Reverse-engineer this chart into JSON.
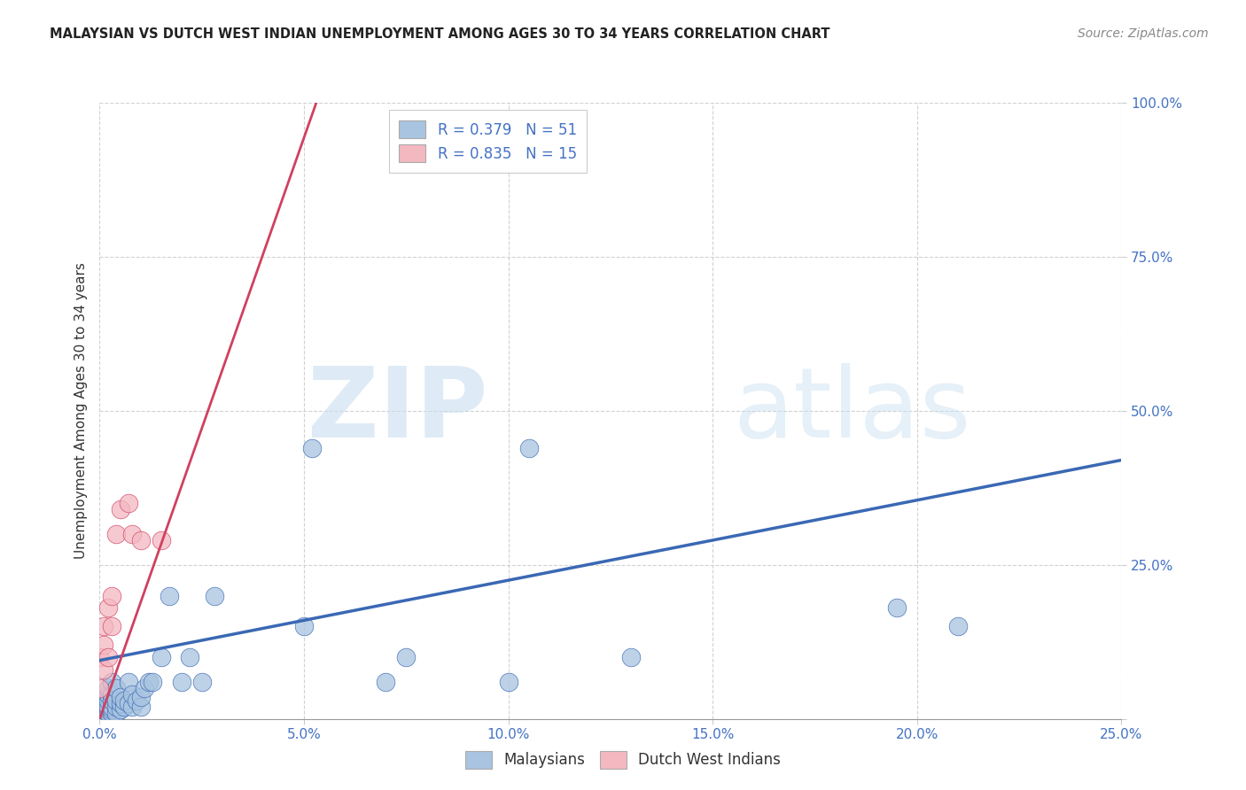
{
  "title": "MALAYSIAN VS DUTCH WEST INDIAN UNEMPLOYMENT AMONG AGES 30 TO 34 YEARS CORRELATION CHART",
  "source": "Source: ZipAtlas.com",
  "ylabel": "Unemployment Among Ages 30 to 34 years",
  "watermark_zip": "ZIP",
  "watermark_atlas": "atlas",
  "xlim": [
    0.0,
    0.25
  ],
  "ylim": [
    0.0,
    1.0
  ],
  "xticks": [
    0.0,
    0.05,
    0.1,
    0.15,
    0.2,
    0.25
  ],
  "yticks": [
    0.0,
    0.25,
    0.5,
    0.75,
    1.0
  ],
  "xtick_labels": [
    "0.0%",
    "5.0%",
    "10.0%",
    "15.0%",
    "20.0%",
    "25.0%"
  ],
  "ytick_labels": [
    "",
    "25.0%",
    "50.0%",
    "75.0%",
    "100.0%"
  ],
  "malaysian_R": 0.379,
  "malaysian_N": 51,
  "dutch_R": 0.835,
  "dutch_N": 15,
  "malaysian_color": "#a8c4e0",
  "malaysian_line_color": "#3a68b4",
  "dutch_color": "#f4b8c1",
  "dutch_line_color": "#d04060",
  "background_color": "#ffffff",
  "grid_color": "#cccccc",
  "malaysian_x": [
    0.0,
    0.001,
    0.001,
    0.001,
    0.001,
    0.002,
    0.002,
    0.002,
    0.002,
    0.002,
    0.002,
    0.003,
    0.003,
    0.003,
    0.003,
    0.003,
    0.003,
    0.004,
    0.004,
    0.004,
    0.004,
    0.005,
    0.005,
    0.005,
    0.006,
    0.006,
    0.007,
    0.007,
    0.008,
    0.008,
    0.009,
    0.01,
    0.01,
    0.011,
    0.012,
    0.013,
    0.015,
    0.017,
    0.02,
    0.022,
    0.025,
    0.028,
    0.05,
    0.052,
    0.07,
    0.075,
    0.1,
    0.105,
    0.13,
    0.195,
    0.21
  ],
  "malaysian_y": [
    0.01,
    0.005,
    0.015,
    0.02,
    0.025,
    0.01,
    0.015,
    0.02,
    0.03,
    0.04,
    0.05,
    0.01,
    0.015,
    0.02,
    0.03,
    0.04,
    0.06,
    0.01,
    0.02,
    0.03,
    0.05,
    0.015,
    0.025,
    0.035,
    0.02,
    0.03,
    0.025,
    0.06,
    0.02,
    0.04,
    0.03,
    0.02,
    0.035,
    0.05,
    0.06,
    0.06,
    0.1,
    0.2,
    0.06,
    0.1,
    0.06,
    0.2,
    0.15,
    0.44,
    0.06,
    0.1,
    0.06,
    0.44,
    0.1,
    0.18,
    0.15
  ],
  "dutch_x": [
    0.0,
    0.0,
    0.001,
    0.001,
    0.001,
    0.002,
    0.002,
    0.003,
    0.003,
    0.004,
    0.005,
    0.007,
    0.008,
    0.01,
    0.015
  ],
  "dutch_y": [
    0.05,
    0.1,
    0.08,
    0.12,
    0.15,
    0.1,
    0.18,
    0.15,
    0.2,
    0.3,
    0.34,
    0.35,
    0.3,
    0.29,
    0.29
  ],
  "blue_line_x": [
    0.0,
    0.25
  ],
  "blue_line_y": [
    0.095,
    0.42
  ],
  "pink_line_x": [
    0.0,
    0.053
  ],
  "pink_line_y": [
    0.0,
    1.0
  ]
}
